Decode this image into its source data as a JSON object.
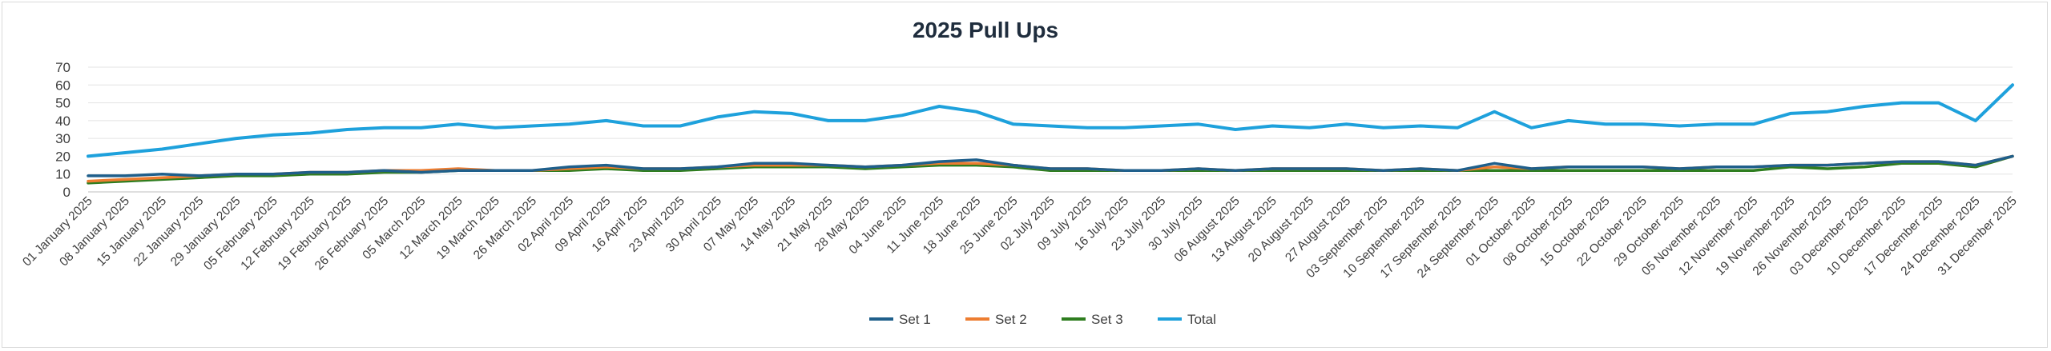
{
  "chart_data": {
    "type": "line",
    "title": "2025 Pull Ups",
    "xlabel": "",
    "ylabel": "",
    "ylim": [
      0,
      70
    ],
    "y_ticks": [
      0,
      10,
      20,
      30,
      40,
      50,
      60,
      70
    ],
    "grid": "horizontal",
    "legend_position": "bottom",
    "x_tick_labels": [
      "01 January 2025",
      "08 January 2025",
      "15 January 2025",
      "22 January 2025",
      "29 January 2025",
      "05 February 2025",
      "12 February 2025",
      "19 February 2025",
      "26 February 2025",
      "05 March 2025",
      "12 March 2025",
      "19 March 2025",
      "26 March 2025",
      "02 April 2025",
      "09 April 2025",
      "16 April 2025",
      "23 April 2025",
      "30 April 2025",
      "07 May 2025",
      "14 May 2025",
      "21 May 2025",
      "28 May 2025",
      "04 June 2025",
      "11 June 2025",
      "18 June 2025",
      "25 June 2025",
      "02 July 2025",
      "09 July 2025",
      "16 July 2025",
      "23 July 2025",
      "30 July 2025",
      "06 August 2025",
      "13 August 2025",
      "20 August 2025",
      "27 August 2025",
      "03 September 2025",
      "10 September 2025",
      "17 September 2025",
      "24 September 2025",
      "01 October 2025",
      "08 October 2025",
      "15 October 2025",
      "22 October 2025",
      "29 October 2025",
      "05 November 2025",
      "12 November 2025",
      "19 November 2025",
      "26 November 2025",
      "03 December 2025",
      "10 December 2025",
      "17 December 2025",
      "24 December 2025",
      "31 December 2025"
    ],
    "x": [
      "2025-01-01",
      "2025-01-08",
      "2025-01-15",
      "2025-01-22",
      "2025-01-29",
      "2025-02-05",
      "2025-02-12",
      "2025-02-19",
      "2025-02-26",
      "2025-03-05",
      "2025-03-12",
      "2025-03-19",
      "2025-03-26",
      "2025-04-02",
      "2025-04-09",
      "2025-04-16",
      "2025-04-23",
      "2025-04-30",
      "2025-05-07",
      "2025-05-14",
      "2025-05-21",
      "2025-05-28",
      "2025-06-04",
      "2025-06-11",
      "2025-06-18",
      "2025-06-25",
      "2025-07-02",
      "2025-07-09",
      "2025-07-16",
      "2025-07-23",
      "2025-07-30",
      "2025-08-06",
      "2025-08-13",
      "2025-08-20",
      "2025-08-27",
      "2025-09-03",
      "2025-09-10",
      "2025-09-17",
      "2025-09-24",
      "2025-10-01",
      "2025-10-08",
      "2025-10-15",
      "2025-10-22",
      "2025-10-29",
      "2025-11-05",
      "2025-11-12",
      "2025-11-19",
      "2025-11-26",
      "2025-12-03",
      "2025-12-10",
      "2025-12-17",
      "2025-12-24",
      "2025-12-31"
    ],
    "series": [
      {
        "name": "Set 1",
        "color": "#1f5f8b",
        "values": [
          9,
          9,
          10,
          9,
          10,
          10,
          11,
          11,
          12,
          11,
          12,
          12,
          12,
          14,
          15,
          13,
          13,
          14,
          16,
          16,
          15,
          14,
          15,
          17,
          18,
          15,
          13,
          13,
          12,
          12,
          13,
          12,
          13,
          13,
          13,
          12,
          13,
          12,
          16,
          13,
          14,
          14,
          14,
          13,
          14,
          14,
          15,
          15,
          16,
          17,
          17,
          15,
          20
        ]
      },
      {
        "name": "Set 2",
        "color": "#ed7d31",
        "values": [
          6,
          7,
          8,
          9,
          10,
          10,
          11,
          11,
          12,
          12,
          13,
          12,
          12,
          13,
          14,
          13,
          13,
          14,
          15,
          15,
          15,
          14,
          15,
          16,
          16,
          15,
          13,
          13,
          12,
          12,
          13,
          12,
          13,
          13,
          13,
          12,
          13,
          12,
          14,
          13,
          14,
          14,
          14,
          13,
          14,
          14,
          15,
          15,
          16,
          17,
          17,
          15,
          20
        ]
      },
      {
        "name": "Set 3",
        "color": "#2e7d1f",
        "values": [
          5,
          6,
          7,
          8,
          9,
          9,
          10,
          10,
          11,
          11,
          12,
          12,
          12,
          12,
          13,
          12,
          12,
          13,
          14,
          14,
          14,
          13,
          14,
          15,
          15,
          14,
          12,
          12,
          12,
          12,
          12,
          12,
          12,
          12,
          12,
          12,
          12,
          12,
          12,
          12,
          12,
          12,
          12,
          12,
          12,
          12,
          14,
          13,
          14,
          16,
          16,
          14,
          20
        ]
      },
      {
        "name": "Total",
        "color": "#1ea1dc",
        "values": [
          20,
          22,
          24,
          27,
          30,
          32,
          33,
          35,
          36,
          36,
          38,
          36,
          37,
          38,
          40,
          37,
          37,
          42,
          45,
          44,
          40,
          40,
          43,
          48,
          45,
          38,
          37,
          36,
          36,
          37,
          38,
          35,
          37,
          36,
          38,
          36,
          37,
          36,
          45,
          36,
          40,
          38,
          38,
          37,
          38,
          38,
          44,
          45,
          48,
          50,
          50,
          40,
          60
        ]
      }
    ]
  }
}
